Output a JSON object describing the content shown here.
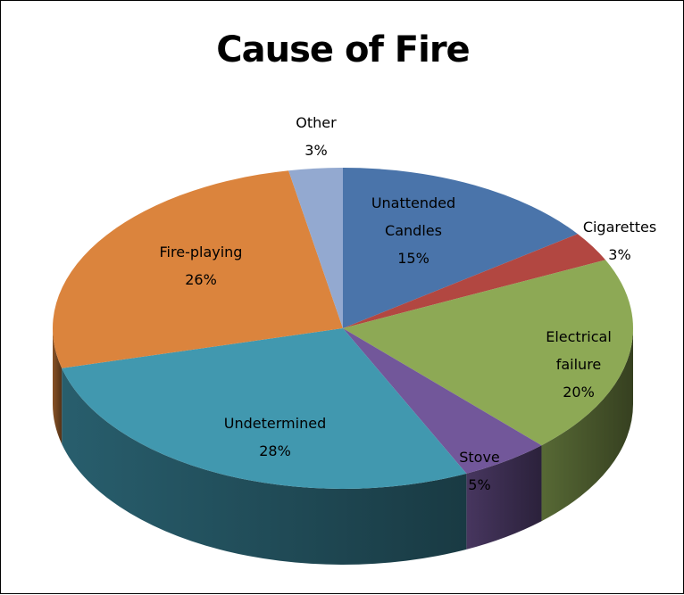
{
  "chart_data": {
    "type": "pie",
    "title": "Cause of Fire",
    "slices": [
      {
        "label": "Unattended Candles",
        "value": 15,
        "percent_label": "15%",
        "color": "#4A74AA"
      },
      {
        "label": "Cigarettes",
        "value": 3,
        "percent_label": "3%",
        "color": "#B24741"
      },
      {
        "label": "Electrical failure",
        "value": 20,
        "percent_label": "20%",
        "color": "#8DA955"
      },
      {
        "label": "Stove",
        "value": 5,
        "percent_label": "5%",
        "color": "#72579A"
      },
      {
        "label": "Undetermined",
        "value": 28,
        "percent_label": "28%",
        "color": "#4198AF"
      },
      {
        "label": "Fire-playing",
        "value": 26,
        "percent_label": "26%",
        "color": "#DB843D"
      },
      {
        "label": "Other",
        "value": 3,
        "percent_label": "3%",
        "color": "#93A9D0"
      }
    ],
    "legend": "none",
    "style": "3d"
  }
}
